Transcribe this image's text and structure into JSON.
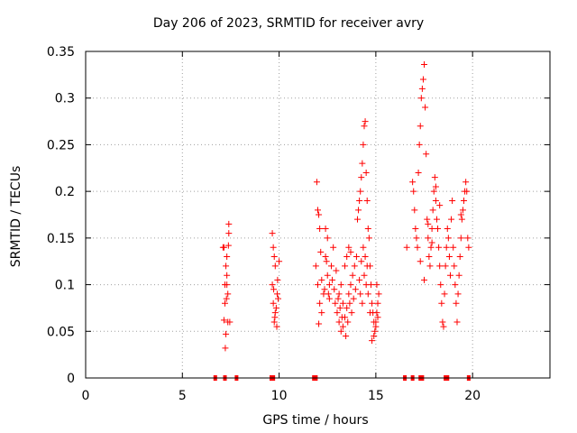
{
  "chart_data": {
    "type": "scatter",
    "title": "Day 206 of 2023, SRMTID for receiver avry",
    "xlabel": "GPS time / hours",
    "ylabel": "SRMTID / TECUs",
    "xlim": [
      0,
      24
    ],
    "ylim": [
      0,
      0.35
    ],
    "xticks": [
      0,
      5,
      10,
      15,
      20
    ],
    "xtick_labels": [
      "0",
      "5",
      "10",
      "15",
      "20"
    ],
    "yticks": [
      0,
      0.05,
      0.1,
      0.15,
      0.2,
      0.25,
      0.3,
      0.35
    ],
    "ytick_labels": [
      "0",
      "0.05",
      "0.1",
      "0.15",
      "0.2",
      "0.25",
      "0.3",
      "0.35"
    ],
    "grid": true,
    "marker": "+",
    "color": "#ff0000",
    "series": [
      {
        "name": "SRMTID",
        "points": [
          [
            7.15,
            0.14
          ],
          [
            7.25,
            0.12
          ],
          [
            7.3,
            0.1
          ],
          [
            7.2,
            0.08
          ],
          [
            7.35,
            0.06
          ],
          [
            7.1,
            0.14
          ],
          [
            7.4,
            0.165
          ],
          [
            7.3,
            0.13
          ],
          [
            7.2,
            0.1
          ],
          [
            7.25,
            0.047
          ],
          [
            7.22,
            0.032
          ],
          [
            7.45,
            0.06
          ],
          [
            7.3,
            0.11
          ],
          [
            7.35,
            0.09
          ],
          [
            7.4,
            0.155
          ],
          [
            7.15,
            0.062
          ],
          [
            7.38,
            0.142
          ],
          [
            7.28,
            0.085
          ],
          [
            9.65,
            0.155
          ],
          [
            9.7,
            0.14
          ],
          [
            9.75,
            0.13
          ],
          [
            9.8,
            0.12
          ],
          [
            9.65,
            0.1
          ],
          [
            9.7,
            0.08
          ],
          [
            9.75,
            0.06
          ],
          [
            9.8,
            0.07
          ],
          [
            9.9,
            0.09
          ],
          [
            10.0,
            0.125
          ],
          [
            9.95,
            0.085
          ],
          [
            9.85,
            0.075
          ],
          [
            9.78,
            0.065
          ],
          [
            9.92,
            0.105
          ],
          [
            9.72,
            0.095
          ],
          [
            9.88,
            0.055
          ],
          [
            11.95,
            0.21
          ],
          [
            12.0,
            0.18
          ],
          [
            12.05,
            0.175
          ],
          [
            12.1,
            0.16
          ],
          [
            11.9,
            0.12
          ],
          [
            12.0,
            0.1
          ],
          [
            12.1,
            0.08
          ],
          [
            12.2,
            0.07
          ],
          [
            12.3,
            0.09
          ],
          [
            12.4,
            0.13
          ],
          [
            12.5,
            0.11
          ],
          [
            12.6,
            0.1
          ],
          [
            12.7,
            0.12
          ],
          [
            12.8,
            0.14
          ],
          [
            12.5,
            0.15
          ],
          [
            12.4,
            0.16
          ],
          [
            12.6,
            0.085
          ],
          [
            12.9,
            0.08
          ],
          [
            13.0,
            0.07
          ],
          [
            13.1,
            0.06
          ],
          [
            13.2,
            0.05
          ],
          [
            13.3,
            0.055
          ],
          [
            13.4,
            0.065
          ],
          [
            13.5,
            0.075
          ],
          [
            13.6,
            0.09
          ],
          [
            13.7,
            0.1
          ],
          [
            13.8,
            0.11
          ],
          [
            13.9,
            0.12
          ],
          [
            14.0,
            0.13
          ],
          [
            13.2,
            0.1
          ],
          [
            13.3,
            0.08
          ],
          [
            13.1,
            0.09
          ],
          [
            13.4,
            0.12
          ],
          [
            13.5,
            0.13
          ],
          [
            13.6,
            0.14
          ],
          [
            13.7,
            0.135
          ],
          [
            12.2,
            0.105
          ],
          [
            12.35,
            0.095
          ],
          [
            12.45,
            0.125
          ],
          [
            12.55,
            0.09
          ],
          [
            12.15,
            0.135
          ],
          [
            12.75,
            0.105
          ],
          [
            12.85,
            0.095
          ],
          [
            12.95,
            0.115
          ],
          [
            13.05,
            0.085
          ],
          [
            13.15,
            0.075
          ],
          [
            13.25,
            0.065
          ],
          [
            13.45,
            0.045
          ],
          [
            13.55,
            0.06
          ],
          [
            13.65,
            0.08
          ],
          [
            13.75,
            0.07
          ],
          [
            13.85,
            0.085
          ],
          [
            13.95,
            0.095
          ],
          [
            12.05,
            0.058
          ],
          [
            14.05,
            0.17
          ],
          [
            14.1,
            0.18
          ],
          [
            14.15,
            0.19
          ],
          [
            14.2,
            0.2
          ],
          [
            14.25,
            0.215
          ],
          [
            14.3,
            0.23
          ],
          [
            14.35,
            0.25
          ],
          [
            14.4,
            0.27
          ],
          [
            14.45,
            0.275
          ],
          [
            14.5,
            0.22
          ],
          [
            14.55,
            0.19
          ],
          [
            14.6,
            0.16
          ],
          [
            14.65,
            0.15
          ],
          [
            14.7,
            0.12
          ],
          [
            14.75,
            0.1
          ],
          [
            14.8,
            0.08
          ],
          [
            14.85,
            0.07
          ],
          [
            14.9,
            0.06
          ],
          [
            14.95,
            0.05
          ],
          [
            15.0,
            0.06
          ],
          [
            15.05,
            0.07
          ],
          [
            15.1,
            0.08
          ],
          [
            14.2,
            0.09
          ],
          [
            14.3,
            0.08
          ],
          [
            14.4,
            0.11
          ],
          [
            14.5,
            0.1
          ],
          [
            14.6,
            0.09
          ],
          [
            14.7,
            0.07
          ],
          [
            14.8,
            0.04
          ],
          [
            14.9,
            0.045
          ],
          [
            15.0,
            0.055
          ],
          [
            15.1,
            0.065
          ],
          [
            15.15,
            0.09
          ],
          [
            15.05,
            0.1
          ],
          [
            14.35,
            0.14
          ],
          [
            14.45,
            0.13
          ],
          [
            14.55,
            0.12
          ],
          [
            14.25,
            0.125
          ],
          [
            14.15,
            0.105
          ],
          [
            16.6,
            0.14
          ],
          [
            16.9,
            0.21
          ],
          [
            16.95,
            0.2
          ],
          [
            17.0,
            0.18
          ],
          [
            17.05,
            0.16
          ],
          [
            17.1,
            0.15
          ],
          [
            17.15,
            0.14
          ],
          [
            17.2,
            0.22
          ],
          [
            17.25,
            0.25
          ],
          [
            17.3,
            0.27
          ],
          [
            17.35,
            0.3
          ],
          [
            17.4,
            0.31
          ],
          [
            17.45,
            0.32
          ],
          [
            17.5,
            0.336
          ],
          [
            17.55,
            0.29
          ],
          [
            17.6,
            0.24
          ],
          [
            17.65,
            0.17
          ],
          [
            17.7,
            0.15
          ],
          [
            17.75,
            0.13
          ],
          [
            17.8,
            0.12
          ],
          [
            17.85,
            0.14
          ],
          [
            17.9,
            0.16
          ],
          [
            17.95,
            0.18
          ],
          [
            18.0,
            0.2
          ],
          [
            18.05,
            0.215
          ],
          [
            18.1,
            0.19
          ],
          [
            18.15,
            0.17
          ],
          [
            18.2,
            0.16
          ],
          [
            18.25,
            0.14
          ],
          [
            18.3,
            0.12
          ],
          [
            18.35,
            0.1
          ],
          [
            18.4,
            0.08
          ],
          [
            18.45,
            0.06
          ],
          [
            18.5,
            0.055
          ],
          [
            18.55,
            0.09
          ],
          [
            18.6,
            0.12
          ],
          [
            18.65,
            0.14
          ],
          [
            18.7,
            0.16
          ],
          [
            18.75,
            0.15
          ],
          [
            18.8,
            0.13
          ],
          [
            18.85,
            0.11
          ],
          [
            18.9,
            0.17
          ],
          [
            18.95,
            0.19
          ],
          [
            19.0,
            0.14
          ],
          [
            19.05,
            0.12
          ],
          [
            19.1,
            0.1
          ],
          [
            19.15,
            0.08
          ],
          [
            19.2,
            0.06
          ],
          [
            19.25,
            0.09
          ],
          [
            19.3,
            0.11
          ],
          [
            19.35,
            0.13
          ],
          [
            19.4,
            0.15
          ],
          [
            19.45,
            0.17
          ],
          [
            19.5,
            0.18
          ],
          [
            19.55,
            0.19
          ],
          [
            19.6,
            0.2
          ],
          [
            19.65,
            0.21
          ],
          [
            19.7,
            0.2
          ],
          [
            19.75,
            0.15
          ],
          [
            19.8,
            0.14
          ],
          [
            17.3,
            0.125
          ],
          [
            17.5,
            0.105
          ],
          [
            17.7,
            0.165
          ],
          [
            17.9,
            0.145
          ],
          [
            18.1,
            0.205
          ],
          [
            18.3,
            0.185
          ],
          [
            19.4,
            0.175
          ]
        ]
      }
    ],
    "baseline_markers": {
      "y": 0,
      "x": [
        6.7,
        7.2,
        7.8,
        9.6,
        9.7,
        11.8,
        11.9,
        16.5,
        16.9,
        17.3,
        17.4,
        18.6,
        18.7,
        19.8
      ]
    }
  }
}
